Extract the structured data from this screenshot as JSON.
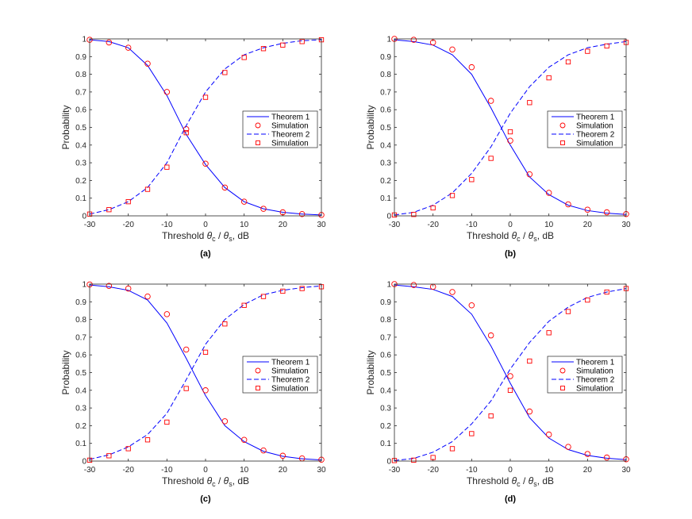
{
  "colors": {
    "theory": "#0000ff",
    "simulation": "#ff0000",
    "axis": "#262626"
  },
  "chart_data": [
    {
      "type": "line",
      "caption": "(a)",
      "xlabel": {
        "prefix": "Threshold ",
        "theta": "θ",
        "sub1": "c",
        "mid": " / ",
        "sub2": "s",
        "suffix": ", dB"
      },
      "ylabel": "Probability",
      "xlim": [
        -30,
        30
      ],
      "ylim": [
        0,
        1
      ],
      "xticks": [
        -30,
        -20,
        -10,
        0,
        10,
        20,
        30
      ],
      "yticks": [
        0,
        0.1,
        0.2,
        0.3,
        0.4,
        0.5,
        0.6,
        0.7,
        0.8,
        0.9,
        1
      ],
      "legend_position": "center-right",
      "series": [
        {
          "name": "Theorem 1",
          "style": "solid",
          "x": [
            -30,
            -25,
            -20,
            -15,
            -10,
            -5,
            0,
            5,
            10,
            15,
            20,
            25,
            30
          ],
          "y": [
            0.995,
            0.985,
            0.95,
            0.85,
            0.68,
            0.46,
            0.29,
            0.16,
            0.08,
            0.04,
            0.02,
            0.01,
            0.005
          ]
        },
        {
          "name": "Simulation",
          "style": "circle",
          "x": [
            -30,
            -25,
            -20,
            -15,
            -10,
            -5,
            0,
            5,
            10,
            15,
            20,
            25,
            30
          ],
          "y": [
            0.995,
            0.98,
            0.95,
            0.86,
            0.7,
            0.49,
            0.295,
            0.16,
            0.08,
            0.04,
            0.02,
            0.01,
            0.005
          ]
        },
        {
          "name": "Theorem 2",
          "style": "dashed",
          "x": [
            -30,
            -25,
            -20,
            -15,
            -10,
            -5,
            0,
            5,
            10,
            15,
            20,
            25,
            30
          ],
          "y": [
            0.01,
            0.035,
            0.08,
            0.16,
            0.3,
            0.51,
            0.7,
            0.83,
            0.91,
            0.95,
            0.975,
            0.99,
            0.995
          ]
        },
        {
          "name": "Simulation",
          "style": "square",
          "x": [
            -30,
            -25,
            -20,
            -15,
            -10,
            -5,
            0,
            5,
            10,
            15,
            20,
            25,
            30
          ],
          "y": [
            0.01,
            0.035,
            0.08,
            0.15,
            0.275,
            0.47,
            0.67,
            0.81,
            0.895,
            0.945,
            0.965,
            0.985,
            0.995
          ]
        }
      ]
    },
    {
      "type": "line",
      "caption": "(b)",
      "xlabel": {
        "prefix": "Threshold ",
        "theta": "θ",
        "sub1": "c",
        "mid": " / ",
        "sub2": "s",
        "suffix": ", dB"
      },
      "ylabel": "Probability",
      "xlim": [
        -30,
        30
      ],
      "ylim": [
        0,
        1
      ],
      "xticks": [
        -30,
        -20,
        -10,
        0,
        10,
        20,
        30
      ],
      "yticks": [
        0,
        0.1,
        0.2,
        0.3,
        0.4,
        0.5,
        0.6,
        0.7,
        0.8,
        0.9,
        1
      ],
      "legend_position": "center-right",
      "series": [
        {
          "name": "Theorem 1",
          "style": "solid",
          "x": [
            -30,
            -25,
            -20,
            -15,
            -10,
            -5,
            0,
            5,
            10,
            15,
            20,
            25,
            30
          ],
          "y": [
            0.995,
            0.985,
            0.965,
            0.91,
            0.8,
            0.61,
            0.4,
            0.22,
            0.12,
            0.06,
            0.03,
            0.015,
            0.008
          ]
        },
        {
          "name": "Simulation",
          "style": "circle",
          "x": [
            -30,
            -25,
            -20,
            -15,
            -10,
            -5,
            0,
            5,
            10,
            15,
            20,
            25,
            30
          ],
          "y": [
            1.0,
            0.995,
            0.98,
            0.94,
            0.84,
            0.65,
            0.425,
            0.235,
            0.13,
            0.065,
            0.035,
            0.02,
            0.01
          ]
        },
        {
          "name": "Theorem 2",
          "style": "dashed",
          "x": [
            -30,
            -25,
            -20,
            -15,
            -10,
            -5,
            0,
            5,
            10,
            15,
            20,
            25,
            30
          ],
          "y": [
            0.005,
            0.02,
            0.06,
            0.13,
            0.24,
            0.39,
            0.58,
            0.73,
            0.84,
            0.91,
            0.95,
            0.97,
            0.985
          ]
        },
        {
          "name": "Simulation",
          "style": "square",
          "x": [
            -30,
            -25,
            -20,
            -15,
            -10,
            -5,
            0,
            5,
            10,
            15,
            20,
            25,
            30
          ],
          "y": [
            0.005,
            0.008,
            0.045,
            0.115,
            0.205,
            0.325,
            0.475,
            0.64,
            0.78,
            0.87,
            0.93,
            0.96,
            0.98
          ]
        }
      ]
    },
    {
      "type": "line",
      "caption": "(c)",
      "xlabel": {
        "prefix": "Threshold ",
        "theta": "θ",
        "sub1": "c",
        "mid": " / ",
        "sub2": "s",
        "suffix": ", dB"
      },
      "ylabel": "Probability",
      "xlim": [
        -30,
        30
      ],
      "ylim": [
        0,
        1
      ],
      "xticks": [
        -30,
        -20,
        -10,
        0,
        10,
        20,
        30
      ],
      "yticks": [
        0,
        0.1,
        0.2,
        0.3,
        0.4,
        0.5,
        0.6,
        0.7,
        0.8,
        0.9,
        1
      ],
      "legend_position": "center-right",
      "series": [
        {
          "name": "Theorem 1",
          "style": "solid",
          "x": [
            -30,
            -25,
            -20,
            -15,
            -10,
            -5,
            0,
            5,
            10,
            15,
            20,
            25,
            30
          ],
          "y": [
            0.995,
            0.985,
            0.965,
            0.91,
            0.78,
            0.58,
            0.37,
            0.2,
            0.11,
            0.055,
            0.027,
            0.013,
            0.006
          ]
        },
        {
          "name": "Simulation",
          "style": "circle",
          "x": [
            -30,
            -25,
            -20,
            -15,
            -10,
            -5,
            0,
            5,
            10,
            15,
            20,
            25,
            30
          ],
          "y": [
            0.998,
            0.99,
            0.975,
            0.93,
            0.83,
            0.63,
            0.4,
            0.225,
            0.12,
            0.06,
            0.03,
            0.015,
            0.008
          ]
        },
        {
          "name": "Theorem 2",
          "style": "dashed",
          "x": [
            -30,
            -25,
            -20,
            -15,
            -10,
            -5,
            0,
            5,
            10,
            15,
            20,
            25,
            30
          ],
          "y": [
            0.01,
            0.035,
            0.08,
            0.15,
            0.27,
            0.46,
            0.66,
            0.8,
            0.885,
            0.94,
            0.965,
            0.98,
            0.99
          ]
        },
        {
          "name": "Simulation",
          "style": "square",
          "x": [
            -30,
            -25,
            -20,
            -15,
            -10,
            -5,
            0,
            5,
            10,
            15,
            20,
            25,
            30
          ],
          "y": [
            0.005,
            0.03,
            0.07,
            0.12,
            0.22,
            0.41,
            0.615,
            0.775,
            0.88,
            0.93,
            0.96,
            0.975,
            0.985
          ]
        }
      ]
    },
    {
      "type": "line",
      "caption": "(d)",
      "xlabel": {
        "prefix": "Threshold ",
        "theta": "θ",
        "sub1": "c",
        "mid": " / ",
        "sub2": "s",
        "suffix": ", dB"
      },
      "ylabel": "Probability",
      "xlim": [
        -30,
        30
      ],
      "ylim": [
        0,
        1
      ],
      "xticks": [
        -30,
        -20,
        -10,
        0,
        10,
        20,
        30
      ],
      "yticks": [
        0,
        0.1,
        0.2,
        0.3,
        0.4,
        0.5,
        0.6,
        0.7,
        0.8,
        0.9,
        1
      ],
      "legend_position": "center-right",
      "series": [
        {
          "name": "Theorem 1",
          "style": "solid",
          "x": [
            -30,
            -25,
            -20,
            -15,
            -10,
            -5,
            0,
            5,
            10,
            15,
            20,
            25,
            30
          ],
          "y": [
            0.995,
            0.985,
            0.97,
            0.93,
            0.83,
            0.65,
            0.44,
            0.245,
            0.13,
            0.065,
            0.032,
            0.016,
            0.008
          ]
        },
        {
          "name": "Simulation",
          "style": "circle",
          "x": [
            -30,
            -25,
            -20,
            -15,
            -10,
            -5,
            0,
            5,
            10,
            15,
            20,
            25,
            30
          ],
          "y": [
            1.0,
            0.995,
            0.985,
            0.955,
            0.88,
            0.71,
            0.48,
            0.28,
            0.15,
            0.08,
            0.04,
            0.02,
            0.01
          ]
        },
        {
          "name": "Theorem 2",
          "style": "dashed",
          "x": [
            -30,
            -25,
            -20,
            -15,
            -10,
            -5,
            0,
            5,
            10,
            15,
            20,
            25,
            30
          ],
          "y": [
            0.003,
            0.015,
            0.05,
            0.11,
            0.21,
            0.34,
            0.52,
            0.67,
            0.79,
            0.87,
            0.925,
            0.955,
            0.975
          ]
        },
        {
          "name": "Simulation",
          "style": "square",
          "x": [
            -30,
            -25,
            -20,
            -15,
            -10,
            -5,
            0,
            5,
            10,
            15,
            20,
            25,
            30
          ],
          "y": [
            0.003,
            0.005,
            0.02,
            0.07,
            0.155,
            0.255,
            0.4,
            0.565,
            0.725,
            0.845,
            0.91,
            0.955,
            0.975
          ]
        }
      ]
    }
  ]
}
